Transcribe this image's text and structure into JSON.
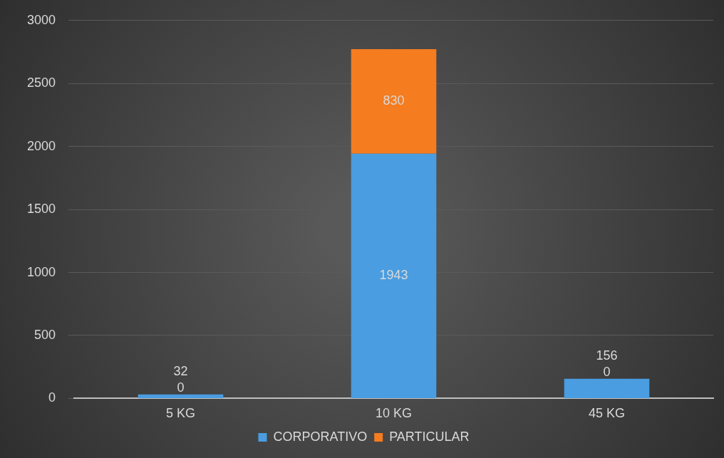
{
  "chart_data": {
    "type": "bar",
    "stacked": true,
    "categories": [
      "5 KG",
      "10 KG",
      "45 KG"
    ],
    "series": [
      {
        "name": "CORPORATIVO",
        "color": "#4a9de0",
        "values": [
          32,
          1943,
          156
        ]
      },
      {
        "name": "PARTICULAR",
        "color": "#f57c1f",
        "values": [
          0,
          830,
          0
        ]
      }
    ],
    "ylim": [
      0,
      3000
    ],
    "yticks": [
      0,
      500,
      1000,
      1500,
      2000,
      2500,
      3000
    ],
    "grid": "y",
    "legend": "bottom",
    "data_labels": true
  }
}
